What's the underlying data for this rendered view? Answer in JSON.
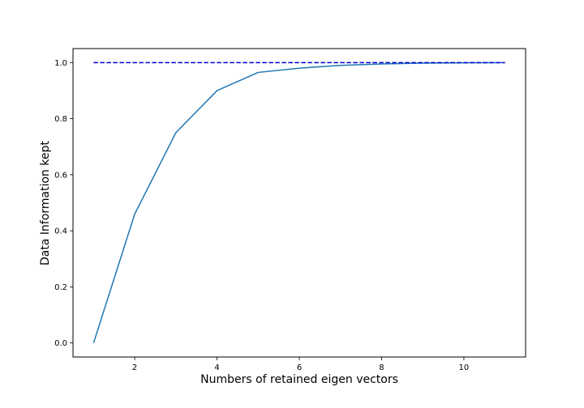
{
  "chart_data": {
    "type": "line",
    "title": "",
    "xlabel": "Numbers of retained eigen vectors",
    "ylabel": "Data Information kept",
    "xlim": [
      0.5,
      11.5
    ],
    "ylim": [
      -0.05,
      1.05
    ],
    "xticks": [
      2,
      4,
      6,
      8,
      10
    ],
    "yticks": [
      0.0,
      0.2,
      0.4,
      0.6,
      0.8,
      1.0
    ],
    "xtick_labels": [
      "2",
      "4",
      "6",
      "8",
      "10"
    ],
    "ytick_labels": [
      "0.0",
      "0.2",
      "0.4",
      "0.6",
      "0.8",
      "1.0"
    ],
    "grid": false,
    "legend": "none",
    "series": [
      {
        "style": "solid",
        "color": "#1f77b4",
        "x": [
          1,
          2,
          3,
          4,
          5,
          6,
          7,
          8,
          9,
          10,
          11
        ],
        "y": [
          0.0,
          0.46,
          0.75,
          0.9,
          0.965,
          0.98,
          0.99,
          0.995,
          0.998,
          0.999,
          1.0
        ]
      },
      {
        "style": "dashed",
        "color": "#0000cc",
        "x": [
          1,
          11
        ],
        "y": [
          1.0,
          1.0
        ]
      }
    ]
  }
}
